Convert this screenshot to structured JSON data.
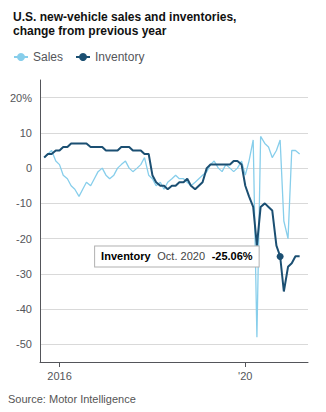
{
  "chart_data": {
    "type": "line",
    "title": "U.S. new-vehicle sales and inventories,",
    "subtitle": "change from previous year",
    "source": "Source: Motor Intelligence",
    "x": [
      2015.67,
      2015.75,
      2015.83,
      2015.92,
      2016.0,
      2016.08,
      2016.17,
      2016.25,
      2016.33,
      2016.42,
      2016.5,
      2016.58,
      2016.67,
      2016.75,
      2016.83,
      2016.92,
      2017.0,
      2017.08,
      2017.17,
      2017.25,
      2017.33,
      2017.42,
      2017.5,
      2017.58,
      2017.67,
      2017.75,
      2017.83,
      2017.92,
      2018.0,
      2018.08,
      2018.17,
      2018.25,
      2018.33,
      2018.42,
      2018.5,
      2018.58,
      2018.67,
      2018.75,
      2018.83,
      2018.92,
      2019.0,
      2019.08,
      2019.17,
      2019.25,
      2019.33,
      2019.42,
      2019.5,
      2019.58,
      2019.67,
      2019.75,
      2019.83,
      2019.92,
      2020.0,
      2020.08,
      2020.17,
      2020.25,
      2020.33,
      2020.42,
      2020.5,
      2020.58,
      2020.67,
      2020.75,
      2020.83,
      2020.92,
      2021.0,
      2021.08,
      2021.17
    ],
    "series": [
      {
        "name": "Sales",
        "color": "#87CEEB",
        "values": [
          3,
          4,
          5,
          2,
          1,
          -2,
          -3,
          -5,
          -6,
          -8,
          -6,
          -4,
          -5,
          -3,
          -1,
          0,
          -2,
          -3,
          -2,
          0,
          1,
          2,
          0,
          -1,
          0,
          1,
          3,
          -2,
          -3,
          -5,
          -4,
          -6,
          -4,
          -3,
          -2,
          -3,
          -3,
          -4,
          -5,
          -4,
          -3,
          -2,
          -1,
          1,
          2,
          0,
          -1,
          1,
          0,
          -1,
          0,
          2,
          -2,
          2,
          8,
          -48,
          9,
          7,
          6,
          3,
          5,
          8,
          -15,
          -20,
          5,
          5,
          4
        ]
      },
      {
        "name": "Inventory",
        "color": "#1B4F72",
        "values": [
          3,
          4,
          4,
          5,
          5,
          6,
          6,
          7,
          7,
          7,
          7,
          7,
          6,
          6,
          6,
          6,
          5,
          5,
          5,
          5,
          6,
          6,
          6,
          5,
          5,
          5,
          4,
          4,
          -2,
          -4,
          -5,
          -5,
          -6,
          -5,
          -5,
          -4,
          -4,
          -3,
          -5,
          -6,
          -5,
          -4,
          0,
          1,
          1,
          1,
          1,
          1,
          1,
          2,
          2,
          1,
          -5,
          -8,
          -11,
          -22,
          -11,
          -10,
          -11,
          -12,
          -22,
          -25,
          -35,
          -28,
          -27,
          -25,
          -25
        ]
      }
    ],
    "xlim": [
      2015.58,
      2021.35
    ],
    "xticks": [
      2016,
      {
        "value": 2020,
        "label": "'20"
      }
    ],
    "ylim": [
      -55,
      25
    ],
    "yticks": [
      {
        "value": 20,
        "label": "20%"
      },
      10,
      0,
      -10,
      -20,
      -30,
      -40,
      -50
    ],
    "grid": true,
    "legend": "top-left",
    "annotations": [
      {
        "series": "Inventory",
        "x": 2020.75,
        "y": -25.06,
        "texts": [
          "Inventory",
          "Oct. 2020",
          "-25.06%"
        ]
      }
    ]
  }
}
